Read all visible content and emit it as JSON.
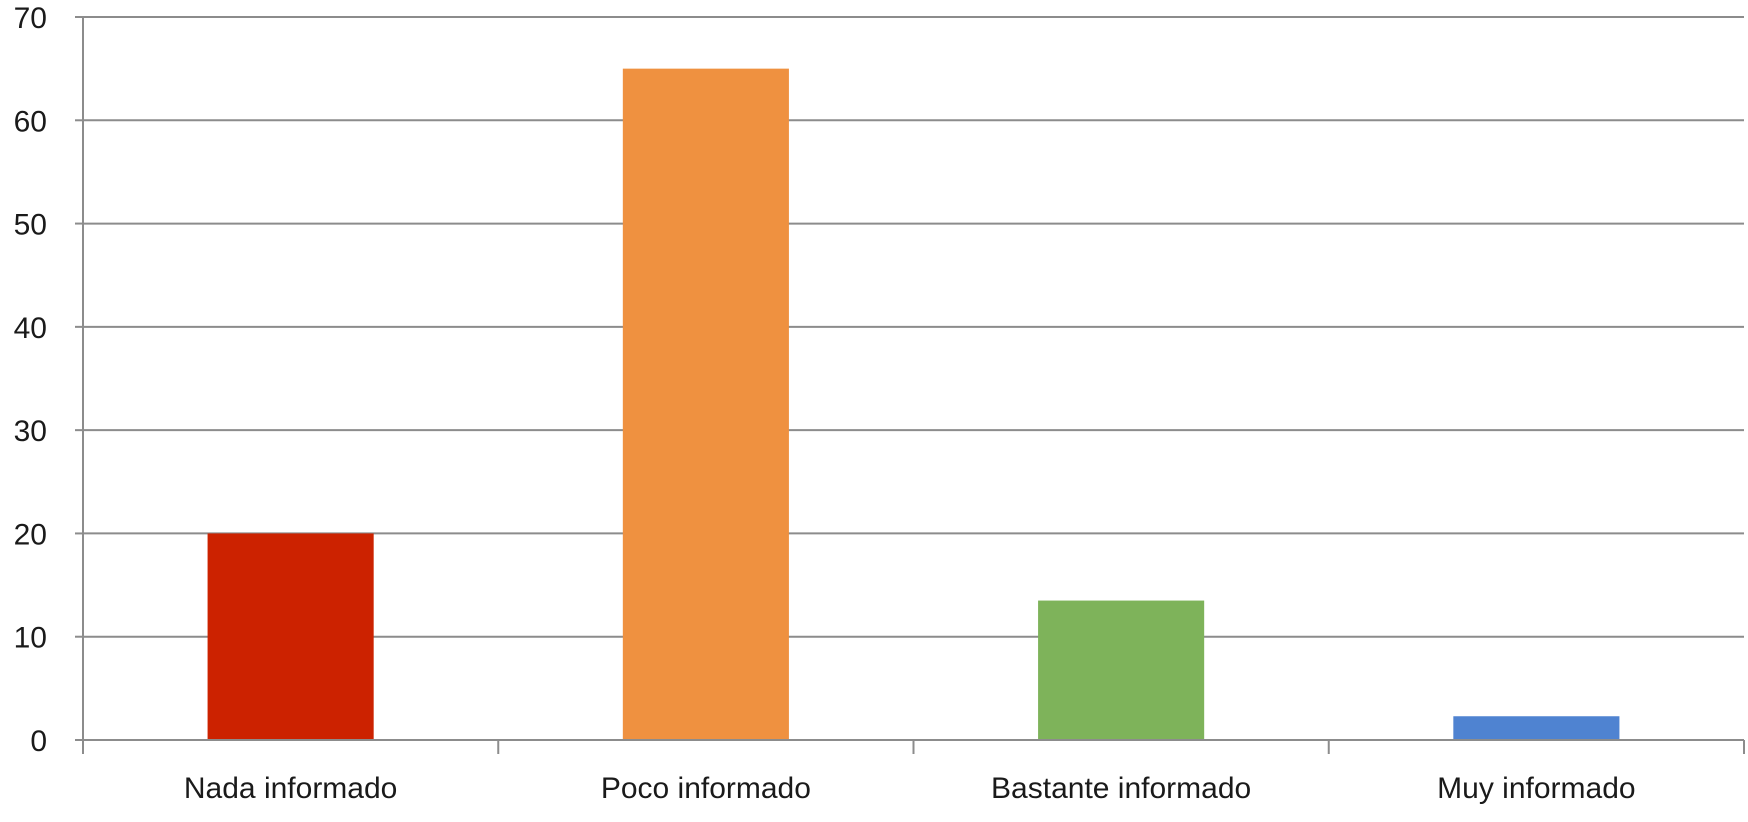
{
  "chart_data": {
    "type": "bar",
    "title": "",
    "xlabel": "",
    "ylabel": "",
    "categories": [
      "Nada informado",
      "Poco informado",
      "Bastante informado",
      "Muy informado"
    ],
    "values": [
      20,
      65,
      13.5,
      2.3
    ],
    "colors": [
      "#cc2200",
      "#ef9140",
      "#7eb35a",
      "#4f83d1"
    ],
    "ylim": [
      0,
      70
    ],
    "yticks": [
      0,
      10,
      20,
      30,
      40,
      50,
      60,
      70
    ],
    "grid": "horizontal",
    "legend": "none"
  }
}
